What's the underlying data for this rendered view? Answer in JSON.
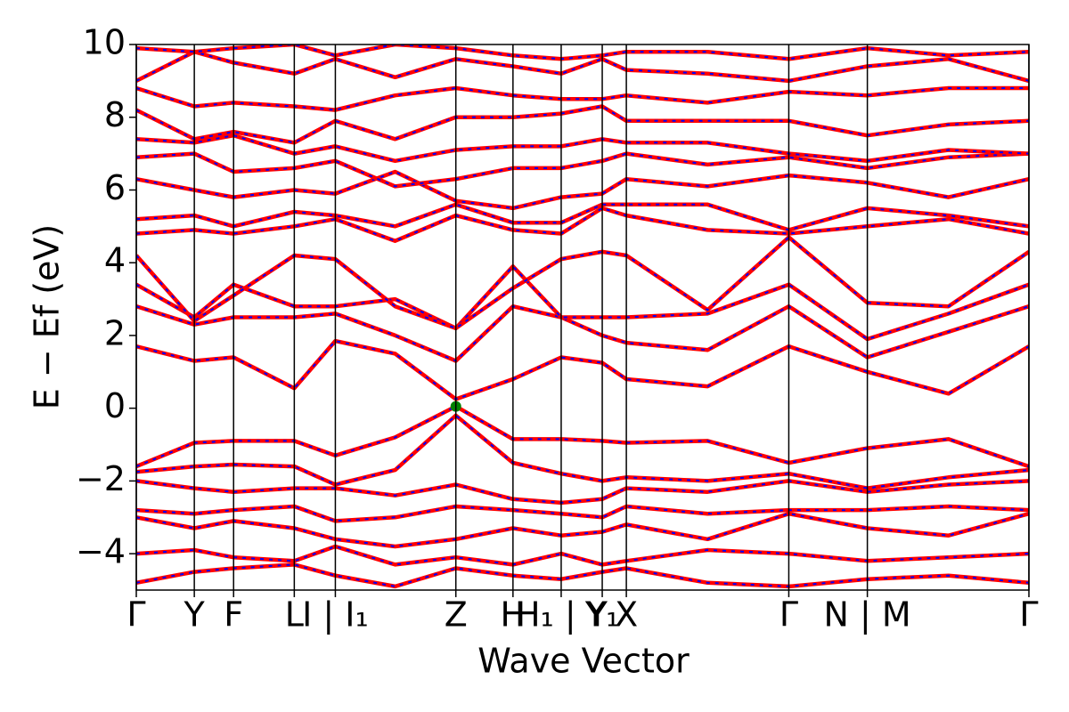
{
  "chart_data": {
    "type": "line",
    "xlabel": "Wave Vector",
    "ylabel": "E − Ef (eV)",
    "xlim": [
      0,
      10
    ],
    "ylim": [
      -5,
      10
    ],
    "xticks": [
      {
        "value": 0,
        "label": "Γ"
      },
      {
        "value": 0.65,
        "label": "Y"
      },
      {
        "value": 1.09,
        "label": "F"
      },
      {
        "value": 1.77,
        "label": "L"
      },
      {
        "value": 2.23,
        "label": "I | I₁"
      },
      {
        "value": 3.58,
        "label": "Z"
      },
      {
        "value": 4.22,
        "label": "H"
      },
      {
        "value": 4.76,
        "label": "H₁ | Y"
      },
      {
        "value": 5.22,
        "label": "Y₁"
      },
      {
        "value": 5.49,
        "label": "X"
      },
      {
        "value": 7.31,
        "label": "Γ"
      },
      {
        "value": 8.19,
        "label": "N | M"
      },
      {
        "value": 10,
        "label": "Γ"
      }
    ],
    "yticks": [
      {
        "value": -4,
        "label": "−4"
      },
      {
        "value": -2,
        "label": "−2"
      },
      0,
      2,
      4,
      6,
      8,
      10
    ],
    "xgrid": true,
    "line_color": "#ff0000",
    "overlay_color": "#0000ff",
    "x": [
      0,
      0.65,
      1.09,
      1.77,
      2.23,
      2.9,
      3.58,
      4.22,
      4.76,
      5.22,
      5.49,
      6.4,
      7.31,
      8.19,
      9.1,
      10
    ],
    "series": [
      {
        "values": [
          -1.6,
          -0.95,
          -0.9,
          -0.9,
          -1.3,
          -0.8,
          0.05,
          -0.85,
          -0.85,
          -0.9,
          -0.95,
          -0.9,
          -1.5,
          -1.1,
          -0.85,
          -1.6
        ]
      },
      {
        "values": [
          -1.75,
          -1.6,
          -1.55,
          -1.6,
          -2.1,
          -1.7,
          -0.2,
          -1.5,
          -1.8,
          -2.0,
          -1.9,
          -2.0,
          -1.8,
          -2.2,
          -1.9,
          -1.7
        ]
      },
      {
        "values": [
          -2.0,
          -2.2,
          -2.3,
          -2.2,
          -2.2,
          -2.4,
          -2.1,
          -2.5,
          -2.6,
          -2.5,
          -2.2,
          -2.3,
          -2.0,
          -2.3,
          -2.1,
          -2.0
        ]
      },
      {
        "values": [
          -2.8,
          -2.9,
          -2.8,
          -2.7,
          -3.1,
          -3.0,
          -2.7,
          -2.8,
          -2.9,
          -3.0,
          -2.7,
          -2.9,
          -2.8,
          -2.8,
          -2.7,
          -2.8
        ]
      },
      {
        "values": [
          -3.0,
          -3.3,
          -3.1,
          -3.3,
          -3.6,
          -3.8,
          -3.6,
          -3.3,
          -3.5,
          -3.4,
          -3.2,
          -3.6,
          -2.9,
          -3.3,
          -3.5,
          -2.9
        ]
      },
      {
        "values": [
          -4.0,
          -3.9,
          -4.1,
          -4.2,
          -3.8,
          -4.3,
          -4.1,
          -4.3,
          -4.0,
          -4.3,
          -4.2,
          -3.9,
          -4.0,
          -4.2,
          -4.1,
          -4.0
        ]
      },
      {
        "values": [
          -4.8,
          -4.5,
          -4.4,
          -4.3,
          -4.6,
          -4.9,
          -4.4,
          -4.6,
          -4.7,
          -4.5,
          -4.4,
          -4.8,
          -4.9,
          -4.7,
          -4.6,
          -4.8
        ]
      },
      {
        "values": [
          1.7,
          1.3,
          1.4,
          0.55,
          1.85,
          1.5,
          0.25,
          0.8,
          1.4,
          1.25,
          0.8,
          0.6,
          1.7,
          1.0,
          0.4,
          1.7
        ]
      },
      {
        "values": [
          2.8,
          2.3,
          2.5,
          2.5,
          2.6,
          2.0,
          1.3,
          2.8,
          2.5,
          2.0,
          1.8,
          1.6,
          2.8,
          1.4,
          2.1,
          2.8
        ]
      },
      {
        "values": [
          3.4,
          2.5,
          3.4,
          2.8,
          2.8,
          3.0,
          2.2,
          3.9,
          2.5,
          2.5,
          2.5,
          2.6,
          3.4,
          1.9,
          2.6,
          3.4
        ]
      },
      {
        "values": [
          4.2,
          2.4,
          3.1,
          4.2,
          4.1,
          2.8,
          2.2,
          3.3,
          4.1,
          4.3,
          4.2,
          2.7,
          4.7,
          2.9,
          2.8,
          4.3
        ]
      },
      {
        "values": [
          4.8,
          4.9,
          4.8,
          5.0,
          5.2,
          4.6,
          5.3,
          4.9,
          4.8,
          5.5,
          5.3,
          4.9,
          4.8,
          5.0,
          5.2,
          4.8
        ]
      },
      {
        "values": [
          5.2,
          5.3,
          5.0,
          5.4,
          5.3,
          5.0,
          5.6,
          5.1,
          5.1,
          5.6,
          5.6,
          5.6,
          4.9,
          5.5,
          5.3,
          5.0
        ]
      },
      {
        "values": [
          6.3,
          6.0,
          5.8,
          6.0,
          5.9,
          6.5,
          5.7,
          5.5,
          5.8,
          5.9,
          6.3,
          6.1,
          6.4,
          6.2,
          5.8,
          6.3
        ]
      },
      {
        "values": [
          6.9,
          7.0,
          6.5,
          6.6,
          6.8,
          6.1,
          6.3,
          6.6,
          6.6,
          6.8,
          7.0,
          6.7,
          6.9,
          6.6,
          6.9,
          7.0
        ]
      },
      {
        "values": [
          7.4,
          7.3,
          7.5,
          7.0,
          7.2,
          6.8,
          7.1,
          7.2,
          7.2,
          7.4,
          7.3,
          7.3,
          7.0,
          6.8,
          7.1,
          7.0
        ]
      },
      {
        "values": [
          8.2,
          7.4,
          7.6,
          7.3,
          7.9,
          7.4,
          8.0,
          8.0,
          8.1,
          8.3,
          7.9,
          7.9,
          7.9,
          7.5,
          7.8,
          7.9
        ]
      },
      {
        "values": [
          8.8,
          8.3,
          8.4,
          8.3,
          8.2,
          8.6,
          8.8,
          8.6,
          8.5,
          8.5,
          8.6,
          8.4,
          8.7,
          8.6,
          8.8,
          8.8
        ]
      },
      {
        "values": [
          9.0,
          9.8,
          9.5,
          9.2,
          9.6,
          9.1,
          9.6,
          9.4,
          9.2,
          9.6,
          9.3,
          9.2,
          9.0,
          9.4,
          9.6,
          9.0
        ]
      },
      {
        "values": [
          9.9,
          9.8,
          9.9,
          10,
          9.7,
          10,
          9.9,
          9.7,
          9.6,
          9.7,
          9.8,
          9.8,
          9.6,
          9.9,
          9.7,
          9.8
        ]
      }
    ],
    "points": [
      {
        "x": 3.58,
        "y": 0.05,
        "color": "green"
      }
    ]
  }
}
